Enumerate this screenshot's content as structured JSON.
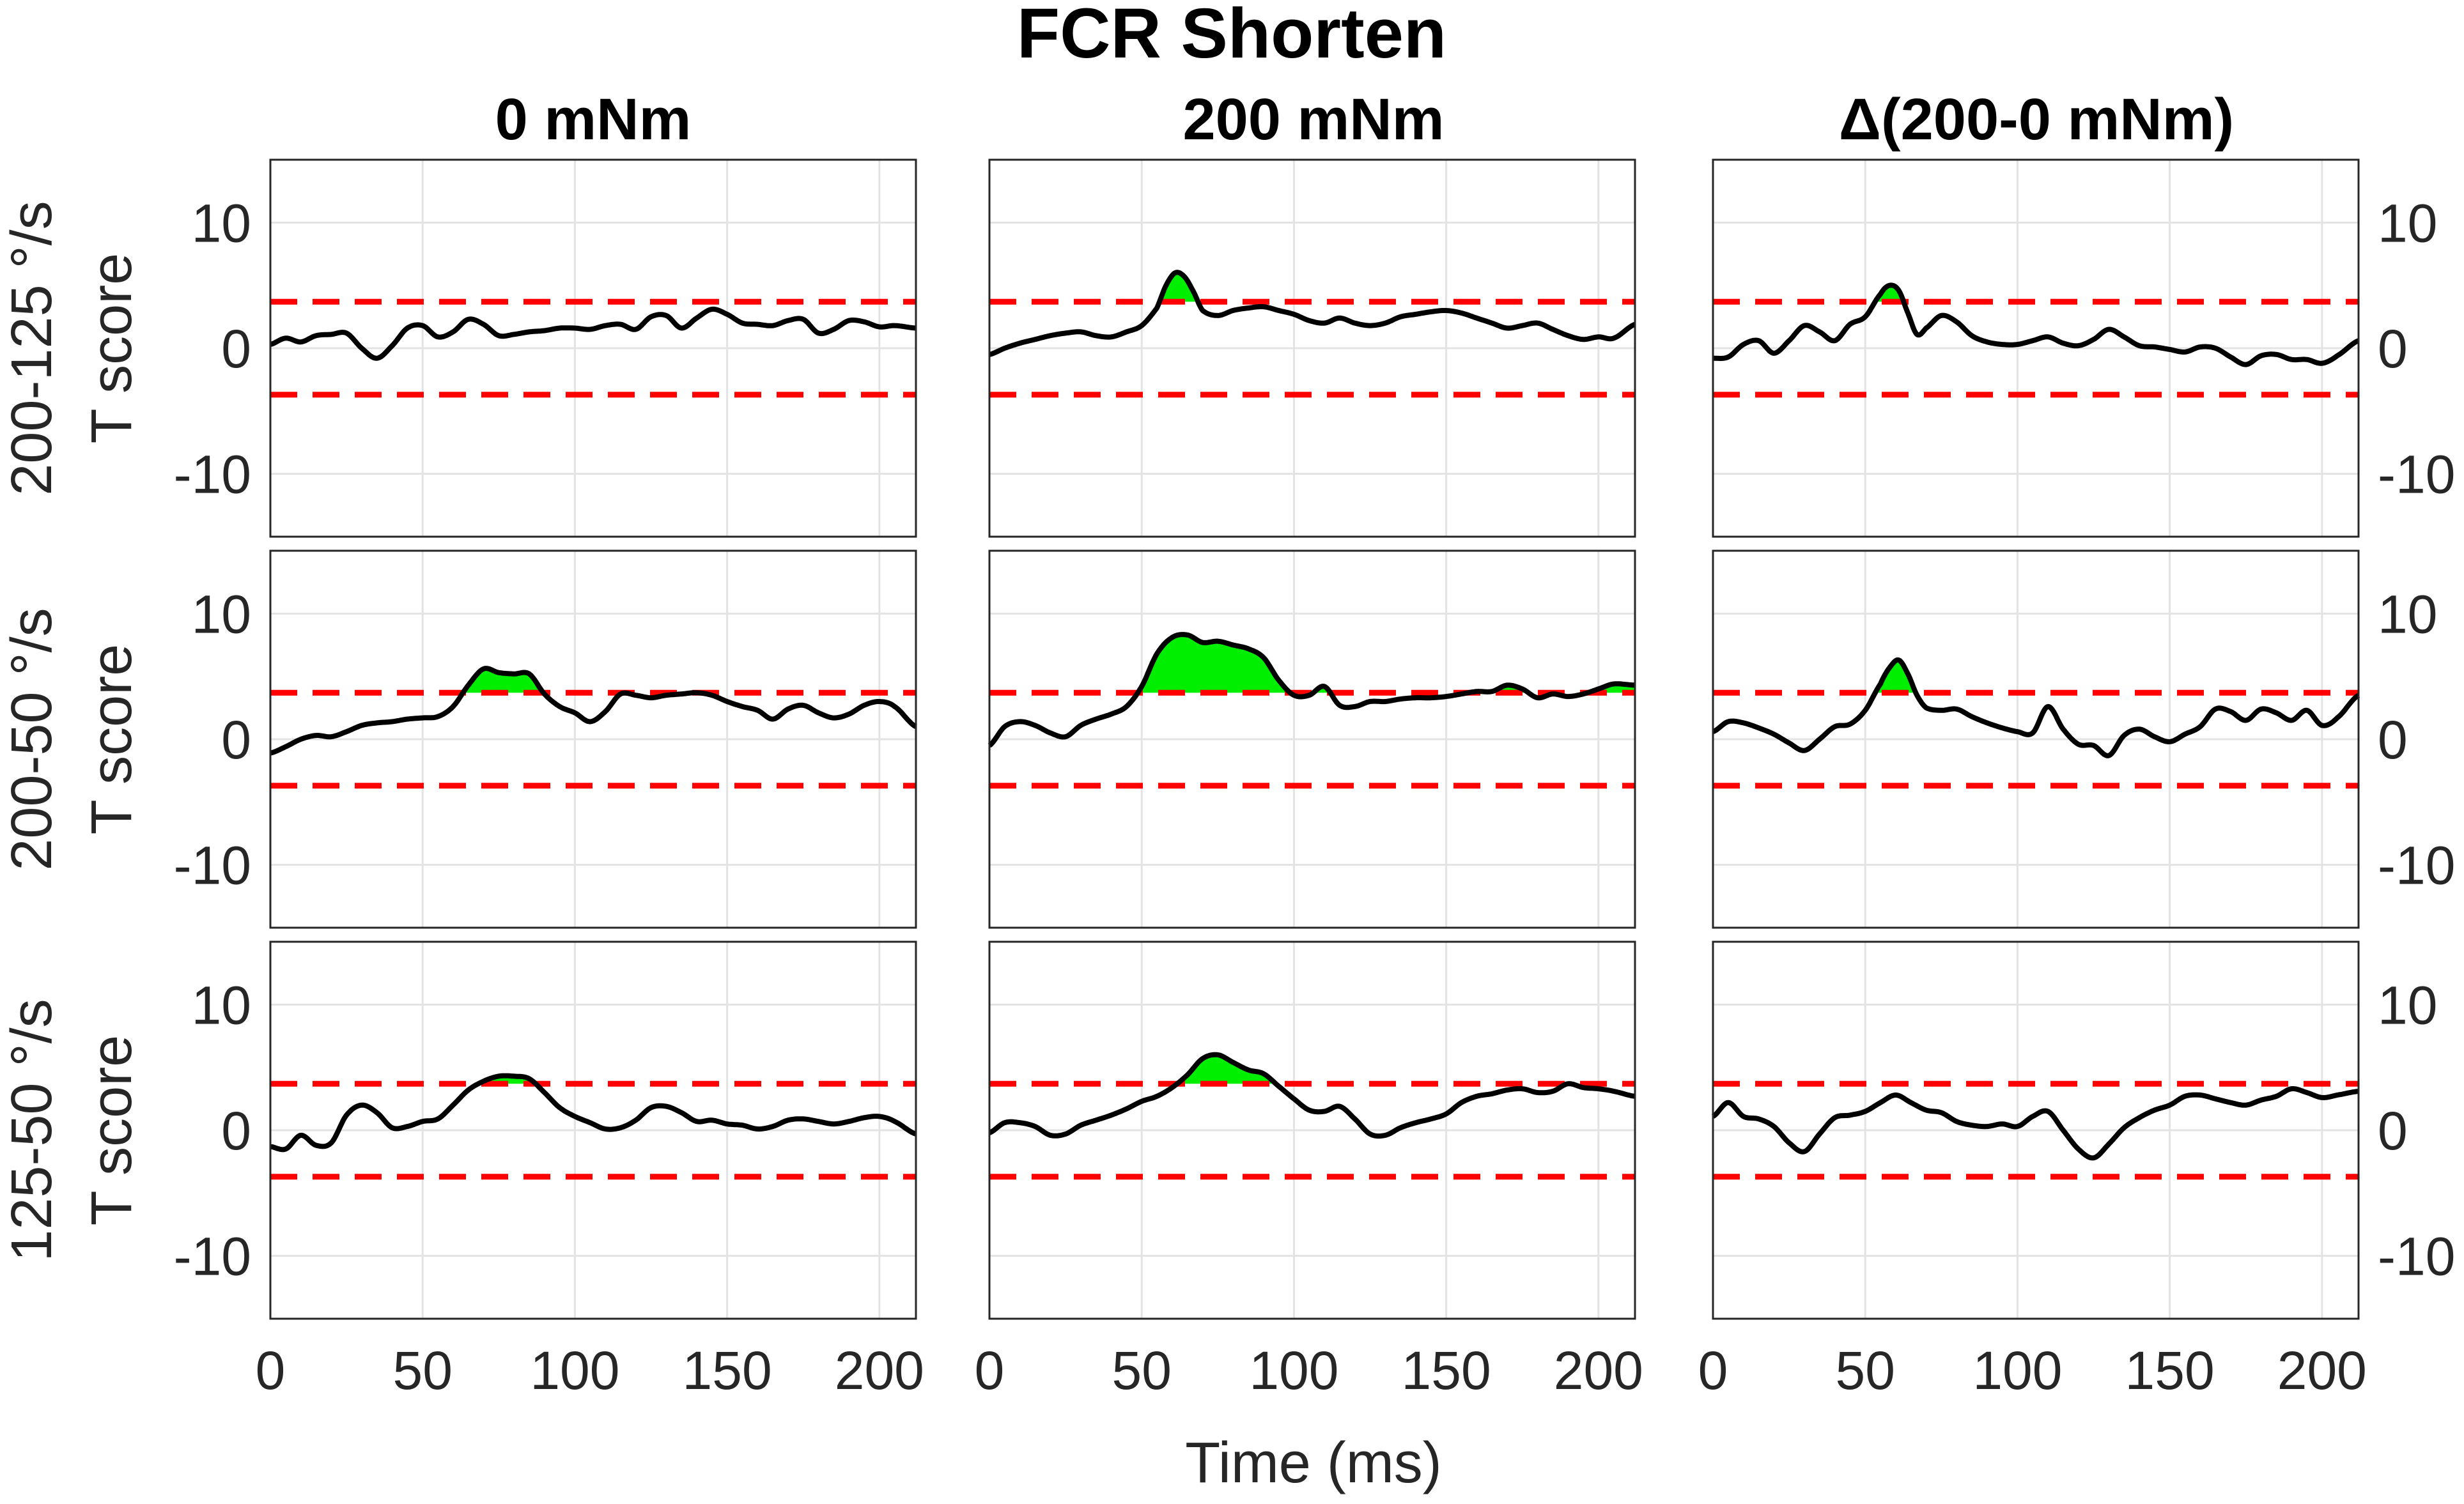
{
  "chart_data": {
    "type": "line",
    "title": "FCR Shorten",
    "xlabel": "Time (ms)",
    "ylabel": "T score",
    "xlim": [
      0,
      212
    ],
    "ylim": [
      -15,
      15
    ],
    "xticks": [
      0,
      50,
      100,
      150,
      200
    ],
    "yticks": [
      10,
      0,
      -10
    ],
    "threshold": 3.7,
    "grid": true,
    "colors": {
      "line": "#000000",
      "threshold": "#ff0000",
      "fill": "#00ee00",
      "grid": "#e3e3e3",
      "axes": "#262626"
    },
    "columns": [
      "0 mNm",
      "200 mNm",
      "Δ(200-0 mNm)"
    ],
    "rows": [
      "200-125 °/s",
      "200-50 °/s",
      "125-50 °/s"
    ],
    "panels": [
      {
        "row": 0,
        "col": 0,
        "x": [
          0,
          5,
          10,
          15,
          20,
          25,
          30,
          35,
          40,
          45,
          50,
          55,
          60,
          65,
          70,
          75,
          80,
          85,
          90,
          95,
          100,
          105,
          110,
          115,
          120,
          125,
          130,
          135,
          140,
          145,
          150,
          155,
          160,
          165,
          170,
          175,
          180,
          185,
          190,
          195,
          200,
          205,
          212
        ],
        "y": [
          0.3,
          0.8,
          0.5,
          1.0,
          1.1,
          1.2,
          0.0,
          -0.8,
          0.2,
          1.6,
          1.8,
          0.9,
          1.3,
          2.3,
          1.9,
          1.0,
          1.1,
          1.3,
          1.4,
          1.6,
          1.6,
          1.5,
          1.8,
          1.9,
          1.5,
          2.5,
          2.6,
          1.6,
          2.4,
          3.1,
          2.7,
          2.0,
          1.9,
          1.8,
          2.2,
          2.3,
          1.2,
          1.5,
          2.2,
          2.1,
          1.7,
          1.8,
          1.6
        ]
      },
      {
        "row": 0,
        "col": 1,
        "x": [
          0,
          5,
          10,
          15,
          20,
          25,
          30,
          35,
          40,
          45,
          50,
          55,
          58,
          61,
          64,
          67,
          70,
          75,
          80,
          85,
          90,
          95,
          100,
          105,
          110,
          115,
          120,
          125,
          130,
          135,
          140,
          145,
          150,
          155,
          160,
          165,
          170,
          175,
          180,
          185,
          190,
          195,
          200,
          205,
          212
        ],
        "y": [
          -0.5,
          0.0,
          0.4,
          0.7,
          1.0,
          1.2,
          1.3,
          1.0,
          0.9,
          1.3,
          1.8,
          3.2,
          5.0,
          6.0,
          5.7,
          4.5,
          3.0,
          2.6,
          3.0,
          3.2,
          3.3,
          3.0,
          2.7,
          2.2,
          2.0,
          2.4,
          2.0,
          1.8,
          2.0,
          2.5,
          2.7,
          2.9,
          3.0,
          2.8,
          2.4,
          2.0,
          1.6,
          1.8,
          2.0,
          1.5,
          1.0,
          0.7,
          0.9,
          0.8,
          1.9
        ]
      },
      {
        "row": 0,
        "col": 2,
        "x": [
          0,
          5,
          10,
          15,
          20,
          25,
          30,
          35,
          40,
          45,
          50,
          55,
          58,
          61,
          64,
          67,
          70,
          75,
          80,
          85,
          90,
          95,
          100,
          105,
          110,
          115,
          120,
          125,
          130,
          135,
          140,
          145,
          150,
          155,
          160,
          165,
          170,
          175,
          180,
          185,
          190,
          195,
          200,
          205,
          212
        ],
        "y": [
          -0.8,
          -0.7,
          0.3,
          0.6,
          -0.4,
          0.6,
          1.8,
          1.3,
          0.6,
          1.9,
          2.5,
          4.3,
          5.0,
          4.6,
          2.8,
          1.1,
          1.6,
          2.6,
          2.1,
          1.0,
          0.5,
          0.3,
          0.3,
          0.6,
          0.9,
          0.4,
          0.2,
          0.7,
          1.5,
          0.9,
          0.2,
          0.1,
          -0.1,
          -0.3,
          0.1,
          0.0,
          -0.7,
          -1.3,
          -0.6,
          -0.5,
          -0.9,
          -0.9,
          -1.2,
          -0.6,
          0.6
        ]
      },
      {
        "row": 1,
        "col": 0,
        "x": [
          0,
          5,
          10,
          15,
          20,
          25,
          30,
          35,
          40,
          45,
          50,
          55,
          60,
          65,
          70,
          75,
          80,
          85,
          90,
          95,
          100,
          105,
          110,
          115,
          120,
          125,
          130,
          135,
          140,
          145,
          150,
          155,
          160,
          165,
          170,
          175,
          180,
          185,
          190,
          195,
          200,
          205,
          212
        ],
        "y": [
          -1.1,
          -0.6,
          0.0,
          0.3,
          0.2,
          0.6,
          1.1,
          1.3,
          1.4,
          1.6,
          1.7,
          1.8,
          2.6,
          4.3,
          5.6,
          5.3,
          5.2,
          5.2,
          3.6,
          2.6,
          2.1,
          1.4,
          2.2,
          3.6,
          3.5,
          3.3,
          3.5,
          3.6,
          3.7,
          3.5,
          3.0,
          2.6,
          2.3,
          1.6,
          2.4,
          2.7,
          2.1,
          1.7,
          2.0,
          2.7,
          3.0,
          2.6,
          1.0
        ]
      },
      {
        "row": 1,
        "col": 1,
        "x": [
          0,
          5,
          10,
          15,
          20,
          25,
          30,
          35,
          40,
          45,
          50,
          55,
          60,
          65,
          70,
          75,
          80,
          85,
          90,
          95,
          100,
          105,
          110,
          115,
          120,
          125,
          130,
          135,
          140,
          145,
          150,
          155,
          160,
          165,
          170,
          175,
          180,
          185,
          190,
          195,
          200,
          205,
          212
        ],
        "y": [
          -0.5,
          1.0,
          1.4,
          1.1,
          0.5,
          0.2,
          1.1,
          1.6,
          2.0,
          2.6,
          4.2,
          6.8,
          8.1,
          8.3,
          7.7,
          7.8,
          7.5,
          7.2,
          6.5,
          4.7,
          3.5,
          3.5,
          4.2,
          2.7,
          2.6,
          3.0,
          3.0,
          3.2,
          3.3,
          3.3,
          3.4,
          3.6,
          3.8,
          3.8,
          4.3,
          4.0,
          3.3,
          3.6,
          3.4,
          3.6,
          4.0,
          4.4,
          4.3
        ]
      },
      {
        "row": 1,
        "col": 2,
        "x": [
          0,
          5,
          10,
          15,
          20,
          25,
          30,
          35,
          40,
          45,
          50,
          55,
          58,
          61,
          64,
          67,
          70,
          75,
          80,
          85,
          90,
          95,
          100,
          105,
          110,
          115,
          120,
          125,
          130,
          135,
          140,
          145,
          150,
          155,
          160,
          165,
          170,
          175,
          180,
          185,
          190,
          195,
          200,
          205,
          212
        ],
        "y": [
          0.6,
          1.4,
          1.3,
          0.9,
          0.4,
          -0.3,
          -0.9,
          0.0,
          1.0,
          1.2,
          2.3,
          4.4,
          5.7,
          6.3,
          5.2,
          3.5,
          2.5,
          2.3,
          2.4,
          1.8,
          1.3,
          0.9,
          0.6,
          0.5,
          2.6,
          0.8,
          -0.4,
          -0.5,
          -1.3,
          0.3,
          0.8,
          0.2,
          -0.2,
          0.4,
          1.0,
          2.4,
          2.2,
          1.5,
          2.4,
          2.1,
          1.5,
          2.3,
          1.1,
          1.7,
          3.5
        ]
      },
      {
        "row": 2,
        "col": 0,
        "x": [
          0,
          5,
          10,
          15,
          20,
          25,
          30,
          35,
          40,
          45,
          50,
          55,
          60,
          65,
          70,
          75,
          80,
          85,
          90,
          95,
          100,
          105,
          110,
          115,
          120,
          125,
          130,
          135,
          140,
          145,
          150,
          155,
          160,
          165,
          170,
          175,
          180,
          185,
          190,
          195,
          200,
          205,
          212
        ],
        "y": [
          -1.3,
          -1.5,
          -0.4,
          -1.2,
          -1.0,
          1.2,
          2.0,
          1.4,
          0.2,
          0.3,
          0.7,
          0.9,
          2.0,
          3.2,
          3.9,
          4.3,
          4.3,
          4.1,
          3.0,
          1.8,
          1.1,
          0.6,
          0.1,
          0.2,
          0.8,
          1.8,
          1.9,
          1.4,
          0.7,
          0.8,
          0.5,
          0.4,
          0.1,
          0.3,
          0.8,
          0.9,
          0.7,
          0.5,
          0.7,
          1.0,
          1.1,
          0.7,
          -0.3
        ]
      },
      {
        "row": 2,
        "col": 1,
        "x": [
          0,
          5,
          10,
          15,
          20,
          25,
          30,
          35,
          40,
          45,
          50,
          55,
          60,
          65,
          70,
          75,
          80,
          85,
          90,
          95,
          100,
          105,
          110,
          115,
          120,
          125,
          130,
          135,
          140,
          145,
          150,
          155,
          160,
          165,
          170,
          175,
          180,
          185,
          190,
          195,
          200,
          205,
          212
        ],
        "y": [
          -0.2,
          0.6,
          0.6,
          0.3,
          -0.4,
          -0.3,
          0.4,
          0.8,
          1.2,
          1.7,
          2.3,
          2.7,
          3.4,
          4.4,
          5.7,
          6.0,
          5.4,
          4.8,
          4.5,
          3.5,
          2.5,
          1.6,
          1.5,
          1.9,
          0.9,
          -0.3,
          -0.4,
          0.2,
          0.6,
          0.9,
          1.3,
          2.2,
          2.7,
          2.9,
          3.2,
          3.3,
          3.0,
          3.1,
          3.7,
          3.4,
          3.3,
          3.1,
          2.7
        ]
      },
      {
        "row": 2,
        "col": 2,
        "x": [
          0,
          5,
          10,
          15,
          20,
          25,
          30,
          35,
          40,
          45,
          50,
          55,
          60,
          65,
          70,
          75,
          80,
          85,
          90,
          95,
          100,
          105,
          110,
          115,
          120,
          125,
          130,
          135,
          140,
          145,
          150,
          155,
          160,
          165,
          170,
          175,
          180,
          185,
          190,
          195,
          200,
          205,
          212
        ],
        "y": [
          1.1,
          2.2,
          1.1,
          0.9,
          0.3,
          -1.0,
          -1.7,
          -0.3,
          1.0,
          1.2,
          1.5,
          2.2,
          2.8,
          2.2,
          1.6,
          1.4,
          0.7,
          0.4,
          0.3,
          0.5,
          0.3,
          1.1,
          1.5,
          0.0,
          -1.5,
          -2.2,
          -1.1,
          0.2,
          1.0,
          1.6,
          2.0,
          2.7,
          2.8,
          2.5,
          2.2,
          2.0,
          2.4,
          2.7,
          3.3,
          3.0,
          2.6,
          2.8,
          3.1
        ]
      }
    ]
  }
}
